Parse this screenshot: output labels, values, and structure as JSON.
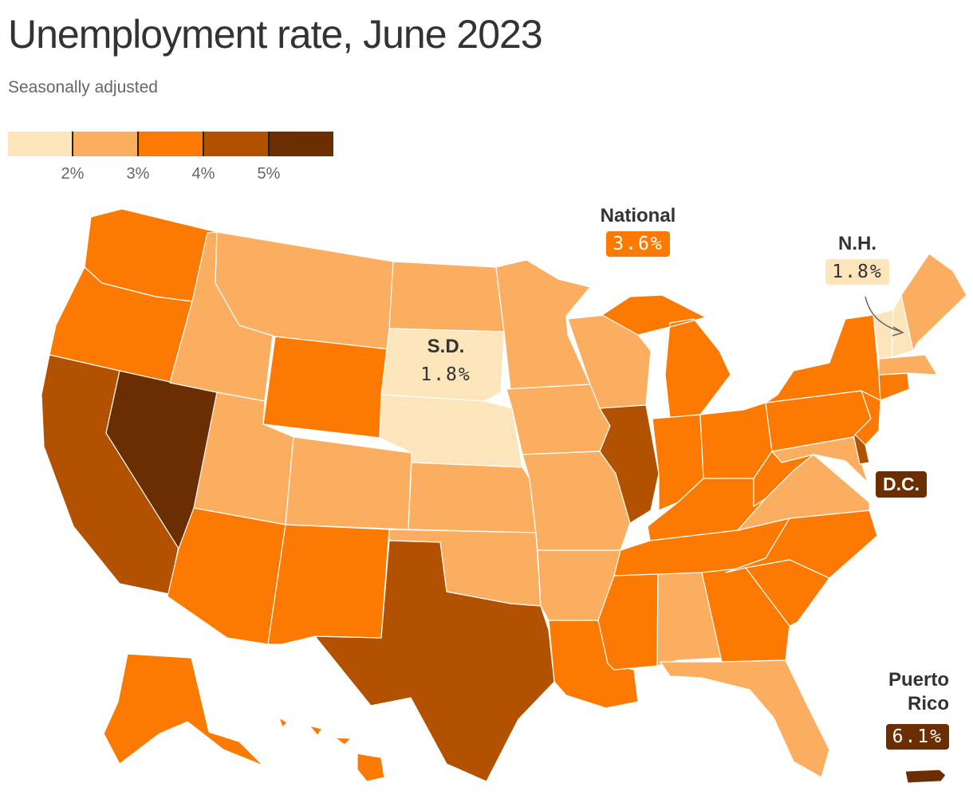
{
  "title": "Unemployment rate, June 2023",
  "subtitle": "Seasonally adjusted",
  "legend": {
    "colors": [
      "#fce5bb",
      "#fbae60",
      "#fc7a01",
      "#b25200",
      "#6b2e00"
    ],
    "thresholds": [
      2,
      3,
      4,
      5
    ],
    "labels": [
      "2%",
      "3%",
      "4%",
      "5%"
    ]
  },
  "callouts": {
    "national": {
      "name": "National",
      "value": "3.6%"
    },
    "nh": {
      "name": "N.H.",
      "value": "1.8%"
    },
    "sd": {
      "name": "S.D.",
      "value": "1.8%"
    },
    "dc": {
      "name": "D.C."
    },
    "pr": {
      "name": "Puerto\nRico",
      "value": "6.1%"
    }
  },
  "state_bins": {
    "WA": 2,
    "OR": 2,
    "CA": 3,
    "NV": 4,
    "ID": 1,
    "MT": 1,
    "WY": 2,
    "UT": 1,
    "AZ": 2,
    "CO": 1,
    "NM": 2,
    "ND": 1,
    "SD": 0,
    "NE": 0,
    "KS": 1,
    "OK": 1,
    "TX": 3,
    "MN": 1,
    "IA": 1,
    "MO": 1,
    "AR": 1,
    "LA": 2,
    "WI": 1,
    "IL": 3,
    "MI": 2,
    "IN": 2,
    "OH": 2,
    "KY": 2,
    "TN": 2,
    "MS": 2,
    "AL": 1,
    "GA": 2,
    "FL": 1,
    "SC": 2,
    "NC": 2,
    "VA": 1,
    "WV": 2,
    "PA": 2,
    "NY": 2,
    "VT": 0,
    "NH": 0,
    "ME": 1,
    "MA": 1,
    "CT": 2,
    "NJ": 2,
    "DE": 3,
    "MD": 1,
    "AK": 2,
    "HI": 2,
    "PR": 4
  }
}
